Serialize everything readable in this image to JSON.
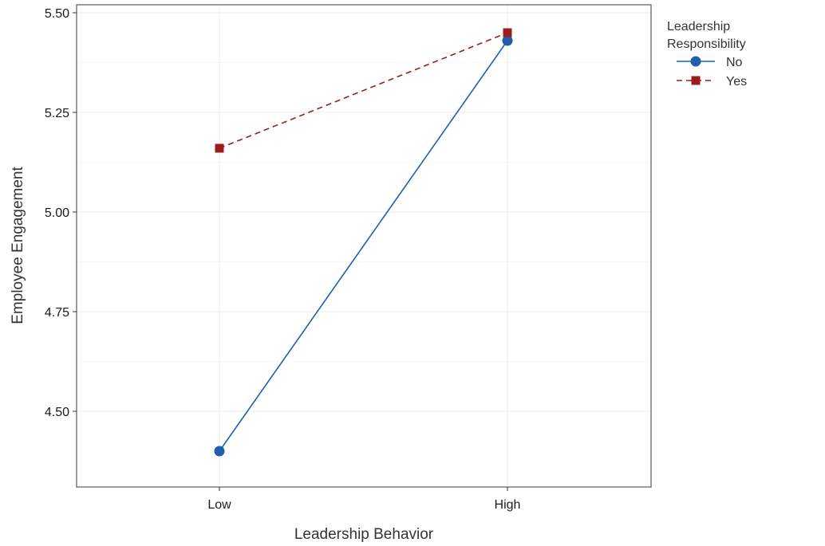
{
  "chart_data": {
    "type": "line",
    "categories": [
      "Low",
      "High"
    ],
    "xlabel": "Leadership Behavior",
    "ylabel": "Employee Engagement",
    "ylim": [
      4.31,
      5.52
    ],
    "yticks": [
      4.5,
      4.75,
      5.0,
      5.25,
      5.5
    ],
    "ytick_labels": [
      "4.50",
      "4.75",
      "5.00",
      "5.25",
      "5.50"
    ],
    "grid": true,
    "legend": {
      "title_lines": [
        "Leadership",
        "Responsibility"
      ],
      "position": "right"
    },
    "series": [
      {
        "name": "No",
        "values": [
          4.4,
          5.43
        ],
        "color": "#1f5fae",
        "marker": "circle",
        "line": "solid"
      },
      {
        "name": "Yes",
        "values": [
          5.16,
          5.45
        ],
        "color": "#9b1c1c",
        "marker": "square",
        "line": "dashed"
      }
    ]
  }
}
